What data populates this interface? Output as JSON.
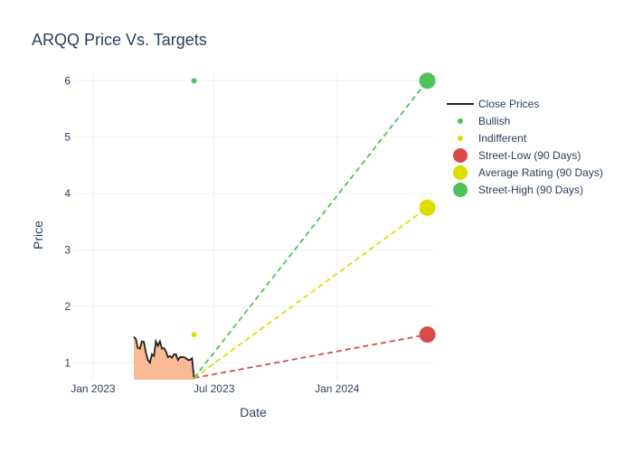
{
  "chart_data": {
    "type": "line",
    "title": "ARQQ Price Vs. Targets",
    "xlabel": "Date",
    "ylabel": "Price",
    "x_range": [
      "2022-12-01",
      "2024-05-25"
    ],
    "ylim": [
      0.7,
      6.15
    ],
    "x_ticks": [
      {
        "date": "2023-01-01",
        "label": "Jan 2023"
      },
      {
        "date": "2023-07-01",
        "label": "Jul 2023"
      },
      {
        "date": "2024-01-01",
        "label": "Jan 2024"
      }
    ],
    "y_ticks": [
      1,
      2,
      3,
      4,
      5,
      6
    ],
    "grid": true,
    "legend_position": "right",
    "series": [
      {
        "name": "Close Prices",
        "kind": "line-area",
        "color": "#222222",
        "fill": "#fbb995",
        "x": [
          "2023-03-03",
          "2023-03-06",
          "2023-03-09",
          "2023-03-12",
          "2023-03-15",
          "2023-03-18",
          "2023-03-21",
          "2023-03-24",
          "2023-03-27",
          "2023-03-30",
          "2023-04-02",
          "2023-04-05",
          "2023-04-08",
          "2023-04-11",
          "2023-04-14",
          "2023-04-17",
          "2023-04-20",
          "2023-04-23",
          "2023-04-26",
          "2023-04-29",
          "2023-05-02",
          "2023-05-05",
          "2023-05-08",
          "2023-05-11",
          "2023-05-14",
          "2023-05-17",
          "2023-05-20",
          "2023-05-23",
          "2023-05-26",
          "2023-05-29",
          "2023-06-01"
        ],
        "y": [
          1.46,
          1.42,
          1.26,
          1.25,
          1.38,
          1.37,
          1.18,
          1.05,
          1.0,
          1.15,
          1.12,
          1.38,
          1.3,
          1.38,
          1.25,
          1.26,
          1.2,
          1.1,
          1.12,
          1.09,
          1.15,
          1.15,
          1.05,
          1.1,
          1.1,
          1.1,
          1.08,
          1.05,
          1.05,
          1.08,
          0.73
        ]
      },
      {
        "name": "Bullish",
        "kind": "point",
        "color": "#4dc35a",
        "x": [
          "2023-06-01"
        ],
        "y": [
          6
        ]
      },
      {
        "name": "Indifferent",
        "kind": "point",
        "color": "#dddd00",
        "x": [
          "2023-06-01"
        ],
        "y": [
          1.5
        ]
      },
      {
        "name": "Street-Low (90 Days)",
        "kind": "target",
        "color": "#d94b4b",
        "from": {
          "x": "2023-06-01",
          "y": 0.73
        },
        "x": [
          "2024-05-15"
        ],
        "y": [
          1.5
        ]
      },
      {
        "name": "Average Rating (90 Days)",
        "kind": "target",
        "color": "#dddd00",
        "from": {
          "x": "2023-06-01",
          "y": 0.73
        },
        "x": [
          "2024-05-15"
        ],
        "y": [
          3.75
        ]
      },
      {
        "name": "Street-High (90 Days)",
        "kind": "target",
        "color": "#4dc35a",
        "from": {
          "x": "2023-06-01",
          "y": 0.73
        },
        "x": [
          "2024-05-15"
        ],
        "y": [
          6
        ]
      }
    ]
  }
}
